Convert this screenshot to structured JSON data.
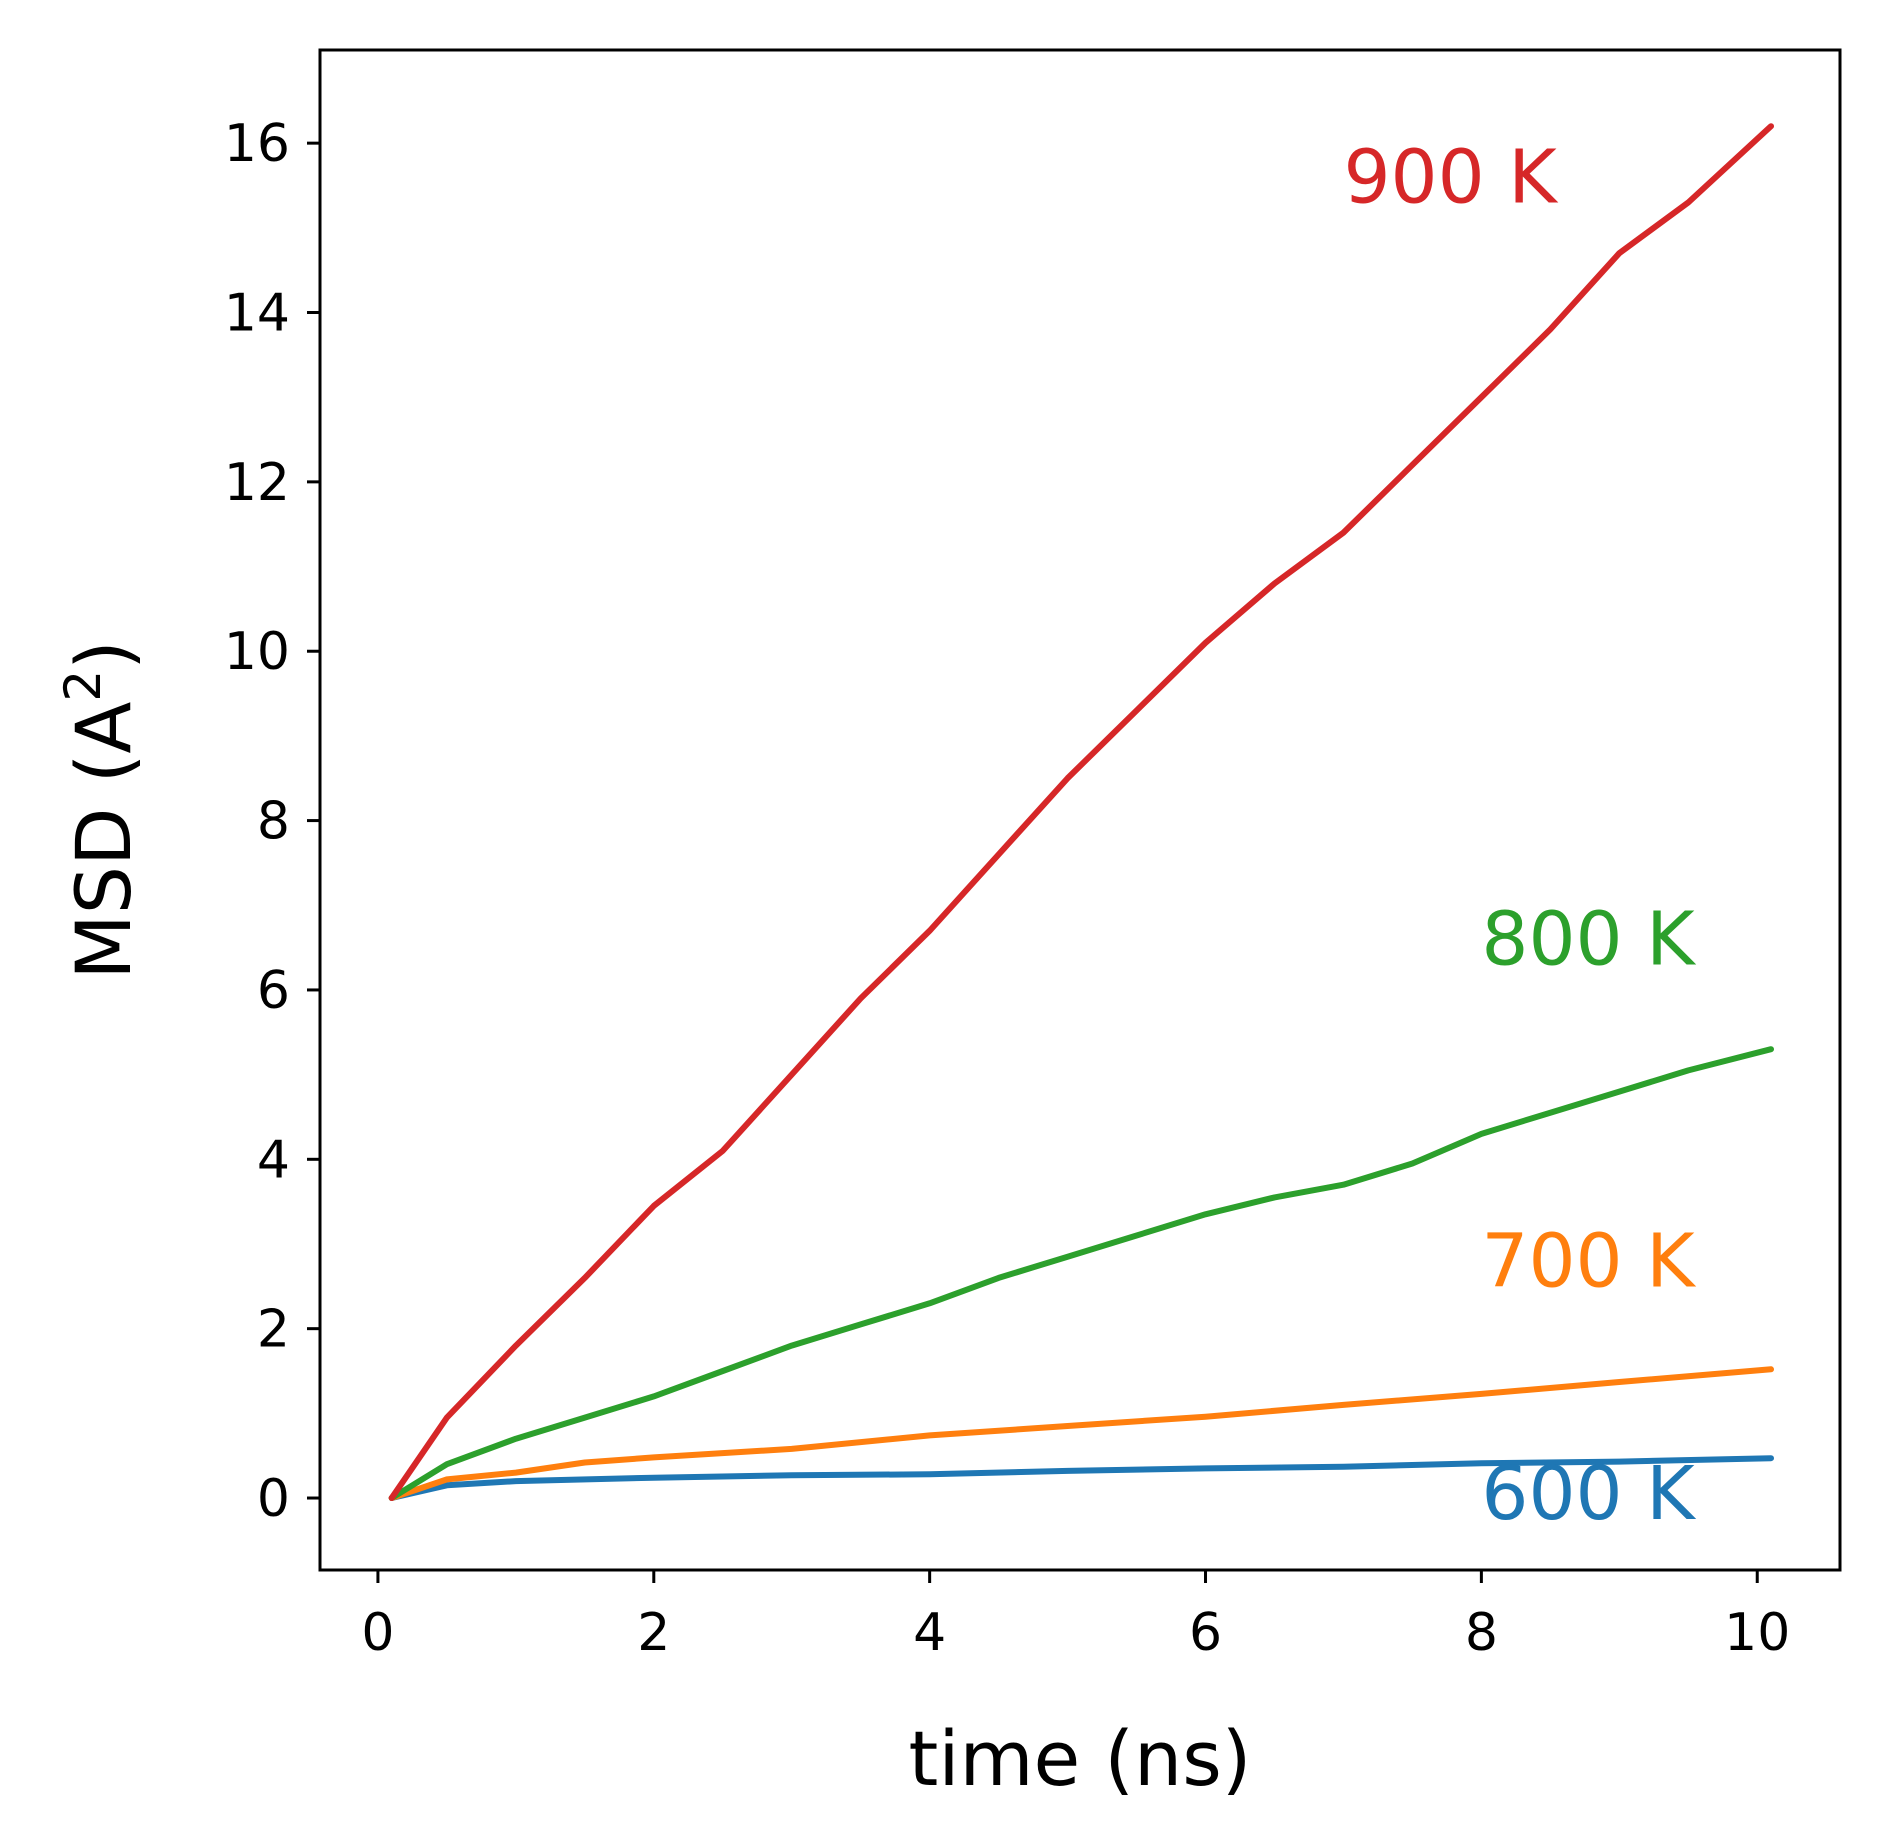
{
  "chart_data": {
    "type": "line",
    "title": "",
    "xlabel": "time (ns)",
    "ylabel": {
      "base": "MSD (A",
      "sup": "2",
      "close": ")"
    },
    "xlim": [
      -0.42,
      10.6
    ],
    "ylim": [
      -0.85,
      17.1
    ],
    "xticks": [
      0,
      2,
      4,
      6,
      8,
      10
    ],
    "yticks": [
      0,
      2,
      4,
      6,
      8,
      10,
      12,
      14,
      16
    ],
    "grid": false,
    "legend": "none",
    "series": [
      {
        "name": "600 K",
        "color": "#1f77b4",
        "x": [
          0.1,
          0.5,
          1,
          2,
          3,
          4,
          5,
          6,
          7,
          8,
          9,
          10.1
        ],
        "y": [
          0,
          0.15,
          0.2,
          0.24,
          0.27,
          0.28,
          0.32,
          0.35,
          0.37,
          0.41,
          0.43,
          0.47
        ]
      },
      {
        "name": "700 K",
        "color": "#ff7f0e",
        "x": [
          0.1,
          0.5,
          1,
          1.5,
          2,
          3,
          4,
          5,
          6,
          7,
          8,
          9,
          10.1
        ],
        "y": [
          0,
          0.22,
          0.3,
          0.42,
          0.48,
          0.58,
          0.74,
          0.85,
          0.96,
          1.1,
          1.23,
          1.37,
          1.52
        ]
      },
      {
        "name": "800 K",
        "color": "#2ca02c",
        "x": [
          0.1,
          0.5,
          1,
          1.5,
          2,
          2.5,
          3,
          3.5,
          4,
          4.5,
          5,
          5.5,
          6,
          6.5,
          7,
          7.5,
          8,
          8.5,
          9,
          9.5,
          10.1
        ],
        "y": [
          0,
          0.4,
          0.7,
          0.95,
          1.2,
          1.5,
          1.8,
          2.05,
          2.3,
          2.6,
          2.85,
          3.1,
          3.35,
          3.55,
          3.7,
          3.95,
          4.3,
          4.55,
          4.8,
          5.05,
          5.3
        ]
      },
      {
        "name": "900 K",
        "color": "#d62728",
        "x": [
          0.1,
          0.5,
          1,
          1.5,
          2,
          2.5,
          3,
          3.5,
          4,
          4.5,
          5,
          5.5,
          6,
          6.5,
          7,
          7.5,
          8,
          8.5,
          9,
          9.5,
          10.1
        ],
        "y": [
          0,
          0.95,
          1.8,
          2.6,
          3.45,
          4.1,
          5.0,
          5.9,
          6.7,
          7.6,
          8.5,
          9.3,
          10.1,
          10.8,
          11.4,
          12.2,
          13.0,
          13.8,
          14.7,
          15.3,
          16.2
        ]
      }
    ],
    "annotations": [
      {
        "text": "900 K",
        "x": 7.0,
        "y": 15.3,
        "color": "#d62728"
      },
      {
        "text": "800 K",
        "x": 8.0,
        "y": 6.3,
        "color": "#2ca02c"
      },
      {
        "text": "700 K",
        "x": 8.0,
        "y": 2.5,
        "color": "#ff7f0e"
      },
      {
        "text": "600 K",
        "x": 8.0,
        "y": -0.25,
        "color": "#1f77b4"
      }
    ]
  }
}
